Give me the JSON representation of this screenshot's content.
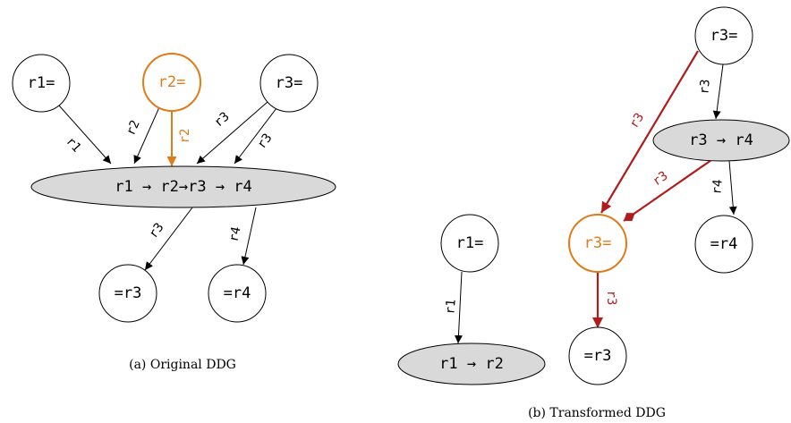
{
  "original": {
    "nodes": [
      "r1=",
      "r2=",
      "r3=",
      "r1 → r2→r3 → r4",
      "=r3",
      "=r4"
    ],
    "edges": [
      "r1",
      "r2",
      "r2",
      "r3",
      "r3",
      "r3",
      "r4"
    ],
    "caption": "(a) Original DDG"
  },
  "transformed": {
    "nodes": [
      "r3=",
      "r3 → r4",
      "=r4",
      "r3=",
      "r1=",
      "r1 → r2",
      "=r3"
    ],
    "edges": [
      "r3",
      "r3",
      "r3",
      "r4",
      "r1",
      "r3"
    ],
    "caption": "(b) Transformed DDG"
  }
}
